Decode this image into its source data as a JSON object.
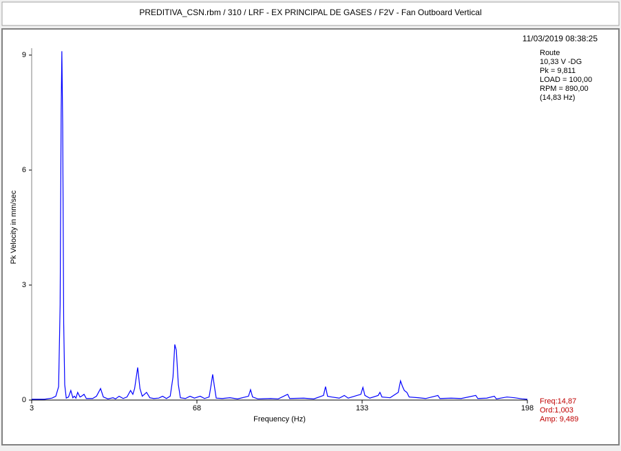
{
  "window_title": "PREDITIVA_CSN.rbm / 310 / LRF - EX PRINCIPAL DE GASES / F2V - Fan Outboard Vertical",
  "timestamp": "11/03/2019 08:38:25",
  "info": [
    "Route",
    "10,33 V -DG",
    "Pk = 9,811",
    "LOAD = 100,00",
    "RPM = 890,00",
    "(14,83 Hz)"
  ],
  "cursor": [
    "Freq:14,87",
    "Ord:1,003",
    "Amp: 9,489"
  ],
  "chart_data": {
    "type": "line",
    "x_label": "Frequency (Hz)",
    "y_label": "Pk Velocity in mm/sec",
    "color": "#0000ff",
    "x": [
      3,
      8,
      11,
      12.5,
      13.6,
      14.2,
      14.6,
      14.87,
      15.2,
      15.6,
      16,
      16.6,
      17.5,
      18.4,
      19.2,
      19.8,
      20.4,
      21.1,
      22,
      22.6,
      23.6,
      24.5,
      27,
      28.5,
      30.1,
      31.2,
      33,
      35,
      36,
      37.4,
      39,
      40.5,
      41.9,
      42.8,
      43.5,
      44.7,
      45.6,
      46.5,
      48.2,
      49.5,
      51,
      53,
      54.5,
      56,
      57.5,
      58.6,
      59.3,
      59.9,
      60.7,
      61.5,
      63.5,
      65.3,
      67,
      69.3,
      71,
      72.8,
      73.6,
      74.2,
      74.9,
      75.6,
      78,
      81,
      84,
      88.3,
      89.1,
      89.9,
      92,
      97,
      100,
      103.7,
      104.5,
      110,
      114,
      117.8,
      118.6,
      119.4,
      121,
      124,
      126,
      127.5,
      132.5,
      133.3,
      134.1,
      136,
      139.3,
      140,
      140.8,
      144,
      147.2,
      148.1,
      148.9,
      149.6,
      150.6,
      151.5,
      155,
      158,
      162.8,
      163.6,
      168,
      172,
      177.7,
      178.5,
      182,
      185,
      185.8,
      190,
      193,
      196,
      198
    ],
    "values": [
      0.02,
      0.02,
      0.05,
      0.1,
      0.35,
      2.5,
      7.5,
      9.1,
      7.2,
      2.0,
      0.4,
      0.05,
      0.08,
      0.25,
      0.06,
      0.1,
      0.05,
      0.2,
      0.08,
      0.1,
      0.15,
      0.04,
      0.04,
      0.1,
      0.3,
      0.08,
      0.03,
      0.06,
      0.03,
      0.1,
      0.04,
      0.08,
      0.25,
      0.15,
      0.3,
      0.85,
      0.3,
      0.1,
      0.2,
      0.06,
      0.04,
      0.05,
      0.1,
      0.04,
      0.1,
      0.6,
      1.45,
      1.3,
      0.4,
      0.06,
      0.04,
      0.1,
      0.05,
      0.1,
      0.04,
      0.08,
      0.4,
      0.67,
      0.35,
      0.05,
      0.04,
      0.06,
      0.03,
      0.1,
      0.27,
      0.08,
      0.03,
      0.04,
      0.03,
      0.15,
      0.04,
      0.05,
      0.03,
      0.12,
      0.35,
      0.1,
      0.08,
      0.05,
      0.12,
      0.05,
      0.15,
      0.33,
      0.12,
      0.05,
      0.12,
      0.2,
      0.08,
      0.06,
      0.2,
      0.5,
      0.35,
      0.25,
      0.2,
      0.08,
      0.06,
      0.04,
      0.12,
      0.04,
      0.05,
      0.04,
      0.12,
      0.04,
      0.05,
      0.1,
      0.03,
      0.08,
      0.06,
      0.03,
      0.02
    ],
    "xlim": [
      3,
      198
    ],
    "ylim": [
      0,
      9
    ],
    "xticks": [
      3,
      68,
      133,
      198
    ],
    "yticks": [
      0,
      3,
      6,
      9
    ]
  }
}
